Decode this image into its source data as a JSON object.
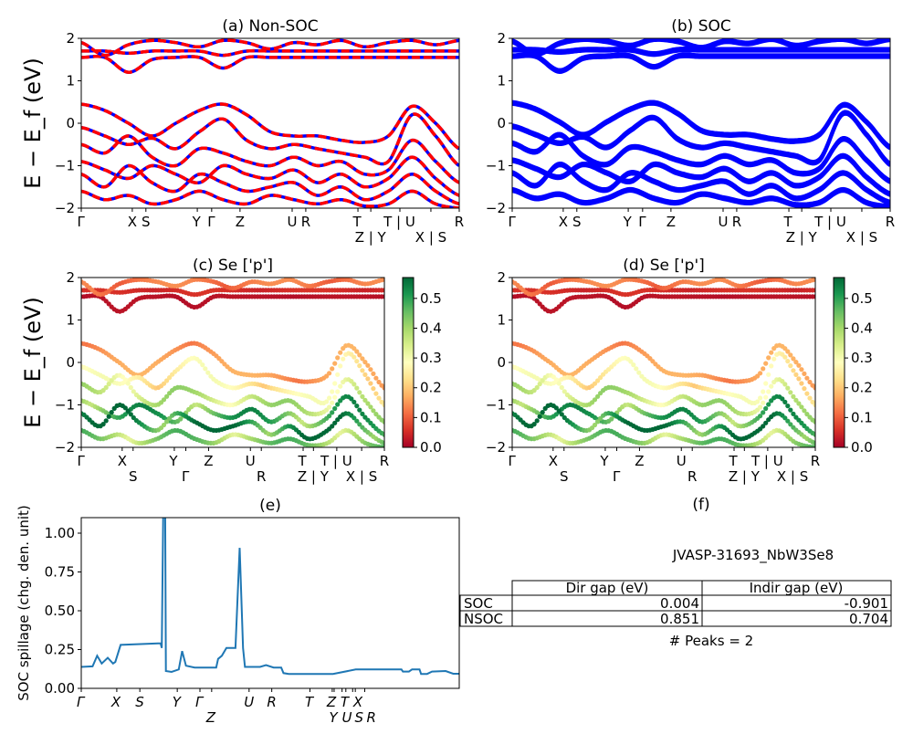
{
  "colors": {
    "non_soc": "#ff0000",
    "soc": "#0000ff",
    "spillage_line": "#1f77b4"
  },
  "band_kpath_labels": [
    "Γ",
    "X",
    "S",
    "Y",
    "Γ",
    "Z",
    "U",
    "R",
    "T",
    "Z | Y",
    "T | U",
    "X | S",
    "R"
  ],
  "band_kpath_positions": [
    0,
    0.135,
    0.171,
    0.307,
    0.345,
    0.42,
    0.558,
    0.594,
    0.732,
    0.766,
    0.843,
    0.925,
    1.0
  ],
  "band_ylabel": "E − E_f (eV)",
  "band_k_samples": [
    0,
    0.0625,
    0.125,
    0.1875,
    0.25,
    0.3125,
    0.375,
    0.4375,
    0.5,
    0.5625,
    0.625,
    0.6875,
    0.75,
    0.8125,
    0.875,
    0.9375,
    1.0
  ],
  "bands": [
    {
      "energies": [
        1.55,
        1.55,
        1.2,
        1.5,
        1.55,
        1.55,
        1.3,
        1.55,
        1.55,
        1.55,
        1.55,
        1.55,
        1.55,
        1.55,
        1.55,
        1.55,
        1.55
      ],
      "se_p_weight": 0.02
    },
    {
      "energies": [
        1.7,
        1.7,
        1.65,
        1.7,
        1.7,
        1.7,
        1.6,
        1.7,
        1.7,
        1.7,
        1.7,
        1.7,
        1.7,
        1.7,
        1.7,
        1.7,
        1.7
      ],
      "se_p_weight": 0.05
    },
    {
      "energies": [
        1.9,
        1.6,
        1.85,
        1.95,
        1.9,
        1.8,
        1.95,
        1.9,
        1.75,
        1.9,
        1.85,
        1.95,
        1.8,
        1.9,
        1.95,
        1.85,
        1.95
      ],
      "se_p_weight": 0.12
    },
    {
      "energies": [
        0.45,
        0.3,
        0.0,
        -0.3,
        0.0,
        0.3,
        0.45,
        0.2,
        -0.2,
        -0.3,
        -0.3,
        -0.4,
        -0.45,
        -0.3,
        0.4,
        0.0,
        -0.6
      ],
      "se_p_weight": 0.15
    },
    {
      "energies": [
        -0.1,
        -0.3,
        -0.5,
        -0.35,
        -0.6,
        -0.2,
        0.1,
        -0.4,
        -0.6,
        -0.5,
        -0.6,
        -0.7,
        -0.8,
        -0.9,
        0.2,
        -0.3,
        -1.0
      ],
      "se_p_weight": 0.25
    },
    {
      "energies": [
        -0.5,
        -0.7,
        -0.3,
        -0.8,
        -1.0,
        -0.6,
        -0.7,
        -0.9,
        -1.0,
        -0.8,
        -1.0,
        -0.9,
        -1.2,
        -1.1,
        -0.4,
        -0.9,
        -1.4
      ],
      "se_p_weight": 0.35
    },
    {
      "energies": [
        -0.9,
        -1.1,
        -1.3,
        -1.0,
        -1.2,
        -1.4,
        -1.0,
        -1.2,
        -1.3,
        -1.1,
        -1.4,
        -1.2,
        -1.5,
        -1.3,
        -0.8,
        -1.3,
        -1.7
      ],
      "se_p_weight": 0.45
    },
    {
      "energies": [
        -1.2,
        -1.5,
        -1.0,
        -1.4,
        -1.6,
        -1.2,
        -1.4,
        -1.6,
        -1.5,
        -1.4,
        -1.7,
        -1.5,
        -1.8,
        -1.6,
        -1.2,
        -1.6,
        -1.9
      ],
      "se_p_weight": 0.5
    },
    {
      "energies": [
        -1.6,
        -1.8,
        -1.7,
        -1.9,
        -1.8,
        -1.6,
        -1.8,
        -1.9,
        -1.7,
        -1.8,
        -1.9,
        -1.8,
        -1.95,
        -1.9,
        -1.6,
        -1.9,
        -2.0
      ],
      "se_p_weight": 0.4
    }
  ],
  "chart_data": [
    {
      "id": "a",
      "type": "line",
      "title": "(a) Non-SOC",
      "ylabel": "E − E_f (eV)",
      "ylim": [
        -2,
        2
      ],
      "yticks": [
        "2",
        "1",
        "0",
        "−1",
        "−2"
      ],
      "series": "bands",
      "style": "red-blue-dashed"
    },
    {
      "id": "b",
      "type": "line",
      "title": "(b) SOC",
      "ylim": [
        -2,
        2
      ],
      "yticks": [
        "2",
        "1",
        "0",
        "−1",
        "−2"
      ],
      "series": "bands",
      "style": "blue"
    },
    {
      "id": "c",
      "type": "scatter",
      "title": "(c)  Se ['p']",
      "ylabel": "E − E_f (eV)",
      "ylim": [
        -2,
        2
      ],
      "yticks": [
        "2",
        "1",
        "0",
        "−1",
        "−2"
      ],
      "colormap": "RdYlGn",
      "colorbar": {
        "range": [
          0,
          0.57
        ],
        "ticks": [
          "0.0",
          "0.1",
          "0.2",
          "0.3",
          "0.4",
          "0.5"
        ]
      }
    },
    {
      "id": "d",
      "type": "scatter",
      "title": "(d) Se ['p']",
      "ylim": [
        -2,
        2
      ],
      "yticks": [
        "2",
        "1",
        "0",
        "−1",
        "−2"
      ],
      "colormap": "RdYlGn",
      "colorbar": {
        "range": [
          0,
          0.57
        ],
        "ticks": [
          "0.0",
          "0.1",
          "0.2",
          "0.3",
          "0.4",
          "0.5"
        ]
      }
    },
    {
      "id": "e",
      "type": "line",
      "title": "(e)",
      "ylabel": "SOC spillage (chg. den. unit)",
      "ylim": [
        0,
        1.1
      ],
      "yticks": [
        "0.00",
        "0.25",
        "0.50",
        "0.75",
        "1.00"
      ],
      "xtick_labels": [
        "Γ",
        "X",
        "S",
        "Y",
        "Γ",
        "Z",
        "U",
        "R",
        "T",
        "Z",
        "Y",
        "T",
        "U",
        "X",
        "S",
        "R"
      ],
      "xtick_positions": [
        0,
        0.094,
        0.155,
        0.254,
        0.314,
        0.345,
        0.444,
        0.504,
        0.605,
        0.664,
        0.669,
        0.69,
        0.7,
        0.718,
        0.725,
        0.75
      ],
      "x": [
        0,
        0.03,
        0.042,
        0.054,
        0.07,
        0.084,
        0.09,
        0.104,
        0.203,
        0.21,
        0.213,
        0.217,
        0.222,
        0.224,
        0.239,
        0.258,
        0.267,
        0.277,
        0.3,
        0.357,
        0.362,
        0.372,
        0.384,
        0.408,
        0.419,
        0.428,
        0.433,
        0.473,
        0.489,
        0.509,
        0.529,
        0.535,
        0.549,
        0.666,
        0.726,
        0.847,
        0.851,
        0.867,
        0.875,
        0.895,
        0.899,
        0.915,
        0.928,
        0.964,
        0.984,
        1.0
      ],
      "y": [
        0.138,
        0.142,
        0.21,
        0.16,
        0.197,
        0.16,
        0.17,
        0.28,
        0.29,
        0.29,
        0.26,
        1.15,
        1.15,
        0.112,
        0.106,
        0.122,
        0.24,
        0.146,
        0.134,
        0.134,
        0.19,
        0.21,
        0.26,
        0.26,
        0.905,
        0.26,
        0.138,
        0.138,
        0.15,
        0.134,
        0.134,
        0.098,
        0.093,
        0.093,
        0.122,
        0.122,
        0.108,
        0.108,
        0.122,
        0.122,
        0.093,
        0.093,
        0.108,
        0.112,
        0.094,
        0.094
      ]
    }
  ],
  "panel_f": {
    "title": "(f)",
    "material": "JVASP-31693_NbW3Se8",
    "table": {
      "columns": [
        "",
        "Dir gap (eV)",
        "Indir gap (eV)"
      ],
      "rows": [
        {
          "label": "SOC",
          "dir_gap": "0.004",
          "indir_gap": "-0.901"
        },
        {
          "label": "NSOC",
          "dir_gap": "0.851",
          "indir_gap": "0.704"
        }
      ]
    },
    "peaks": "# Peaks = 2"
  }
}
